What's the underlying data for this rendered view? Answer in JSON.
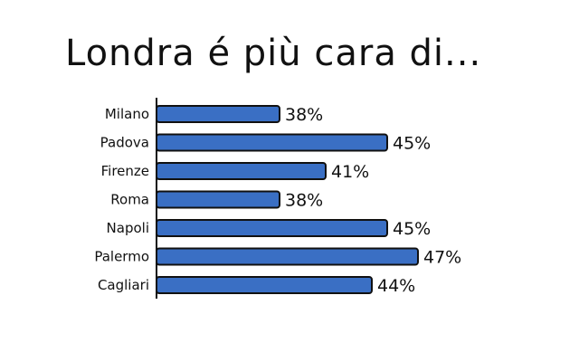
{
  "chart_data": {
    "type": "bar",
    "orientation": "horizontal",
    "title": "Londra é più cara di...",
    "categories": [
      "Milano",
      "Padova",
      "Firenze",
      "Roma",
      "Napoli",
      "Palermo",
      "Cagliari"
    ],
    "values": [
      38,
      45,
      41,
      38,
      45,
      47,
      44
    ],
    "value_labels": [
      "38%",
      "45%",
      "41%",
      "38%",
      "45%",
      "47%",
      "44%"
    ],
    "xlim": [
      30,
      47
    ],
    "bar_color": "#3a6fc4",
    "outline_color": "#111111",
    "grid": false,
    "legend": "none"
  }
}
